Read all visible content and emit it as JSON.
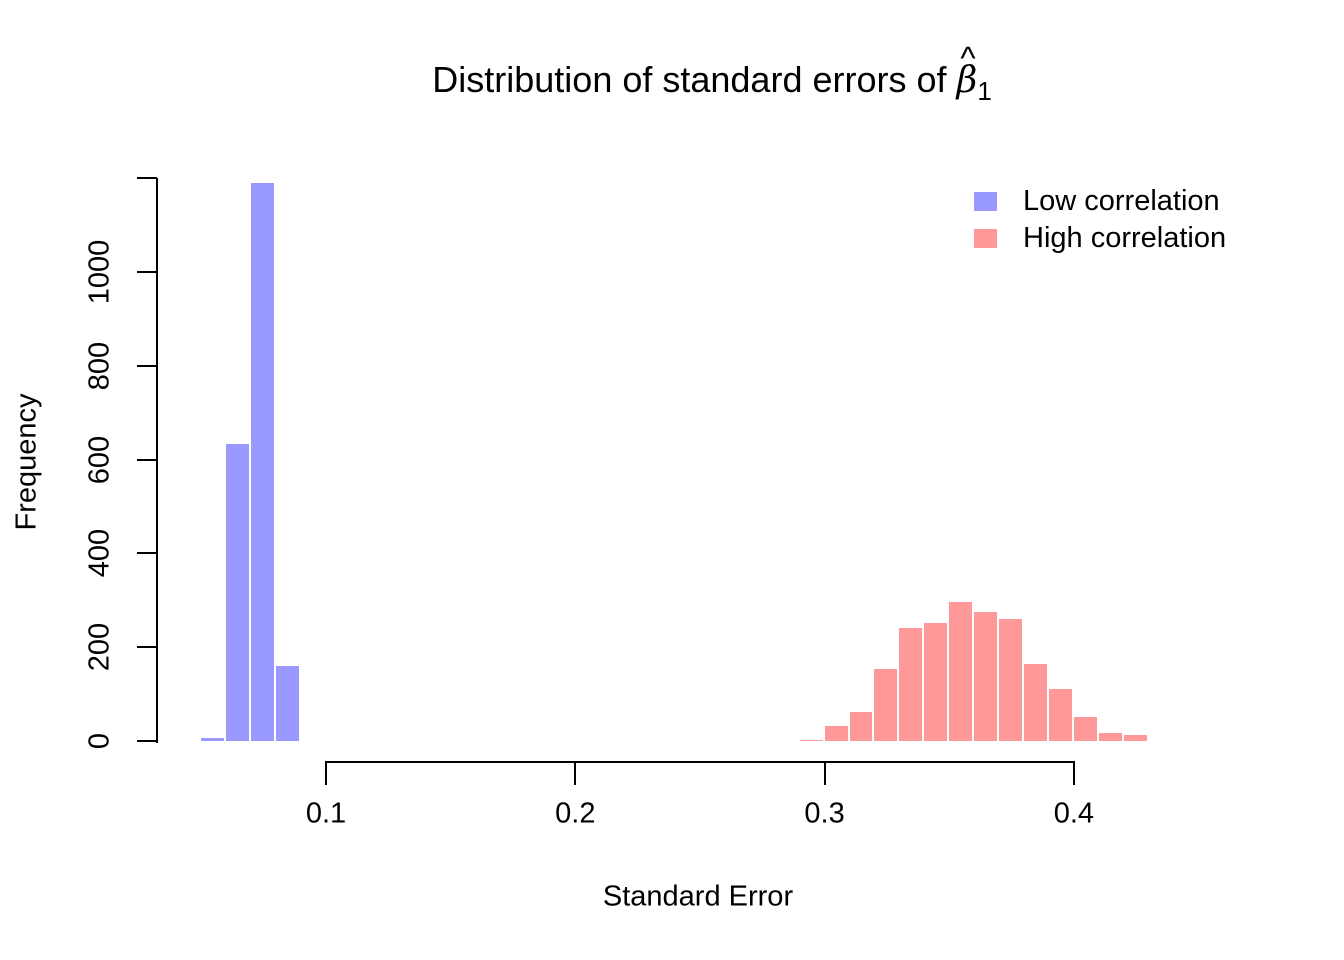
{
  "chart_data": {
    "type": "histogram",
    "title": {
      "prefix": "Distribution of standard errors of ",
      "beta": "β",
      "hat": "^",
      "subscript": "1"
    },
    "xlabel": "Standard Error",
    "ylabel": "Frequency",
    "grid": false,
    "background": "#FFFFFF",
    "axis_color": "#000000",
    "bar_gap_color": "#FFFFFF",
    "bin_width": 0.01,
    "x_axis_span": [
      0.1,
      0.4
    ],
    "y_axis_span": [
      0,
      1200
    ],
    "x_ticks": [
      {
        "value": 0.1,
        "label": "0.1"
      },
      {
        "value": 0.2,
        "label": "0.2"
      },
      {
        "value": 0.3,
        "label": "0.3"
      },
      {
        "value": 0.4,
        "label": "0.4"
      }
    ],
    "y_ticks": [
      {
        "value": 0,
        "label": "0"
      },
      {
        "value": 200,
        "label": "200"
      },
      {
        "value": 400,
        "label": "400"
      },
      {
        "value": 600,
        "label": "600"
      },
      {
        "value": 800,
        "label": "800"
      },
      {
        "value": 1000,
        "label": "1000"
      },
      {
        "value": 1200,
        "label": ""
      }
    ],
    "series": [
      {
        "name": "Low correlation",
        "color": "#9999FF",
        "bin_start": 0.05,
        "counts": [
          6,
          633,
          1190,
          160
        ]
      },
      {
        "name": "High correlation",
        "color": "#FF9999",
        "bin_start": 0.29,
        "counts": [
          3,
          32,
          62,
          154,
          242,
          252,
          297,
          276,
          261,
          165,
          111,
          51,
          17,
          13
        ]
      }
    ],
    "legend": {
      "position": "top-right"
    }
  }
}
